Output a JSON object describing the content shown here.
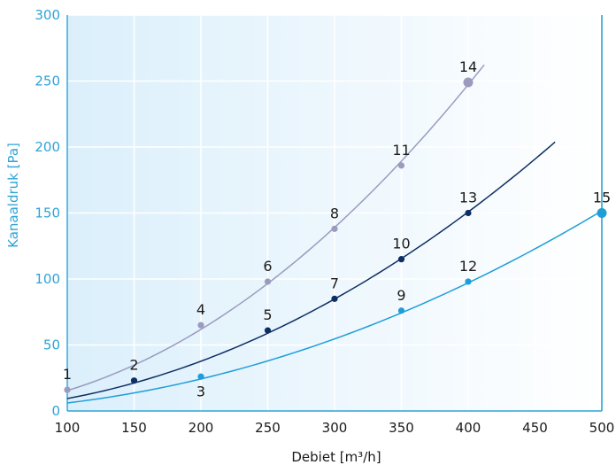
{
  "chart_data": {
    "type": "line",
    "xlabel": "Debiet [m³/h]",
    "ylabel": "Kanaaldruk [Pa]",
    "xlim": [
      100,
      500
    ],
    "ylim": [
      0,
      300
    ],
    "x_ticks": [
      "100",
      "150",
      "200",
      "250",
      "300",
      "350",
      "400",
      "450",
      "500"
    ],
    "y_ticks": [
      "0",
      "50",
      "100",
      "150",
      "200",
      "250",
      "300"
    ],
    "grid": true,
    "colors": {
      "background_left": "#dbeffb",
      "background_right": "#ffffff",
      "grid": "#ffffff",
      "axis": "#2ea3d6",
      "vline": "#2ea3d6",
      "tick_x": "#1a1a1a",
      "tick_y": "#2ea3d6"
    },
    "vline_x": 500,
    "series": [
      {
        "color": "#9b9bbf",
        "curve_x": [
          100,
          412
        ],
        "points": [
          {
            "label": "1",
            "x": 100,
            "y": 16
          },
          {
            "label": "4",
            "x": 200,
            "y": 65
          },
          {
            "label": "6",
            "x": 250,
            "y": 98
          },
          {
            "label": "8",
            "x": 300,
            "y": 138
          },
          {
            "label": "11",
            "x": 350,
            "y": 186
          },
          {
            "label": "14",
            "x": 400,
            "y": 249,
            "big": true
          }
        ]
      },
      {
        "color": "#0e2f63",
        "curve_x": [
          100,
          465
        ],
        "points": [
          {
            "label": "2",
            "x": 150,
            "y": 23
          },
          {
            "label": "5",
            "x": 250,
            "y": 61
          },
          {
            "label": "7",
            "x": 300,
            "y": 85
          },
          {
            "label": "10",
            "x": 350,
            "y": 115
          },
          {
            "label": "13",
            "x": 400,
            "y": 150
          }
        ]
      },
      {
        "color": "#1e9ed8",
        "curve_x": [
          100,
          500
        ],
        "points": [
          {
            "label": "3",
            "x": 200,
            "y": 26,
            "label_below": true
          },
          {
            "label": "9",
            "x": 350,
            "y": 76
          },
          {
            "label": "12",
            "x": 400,
            "y": 98
          },
          {
            "label": "15",
            "x": 500,
            "y": 150,
            "big": true
          }
        ]
      }
    ]
  }
}
